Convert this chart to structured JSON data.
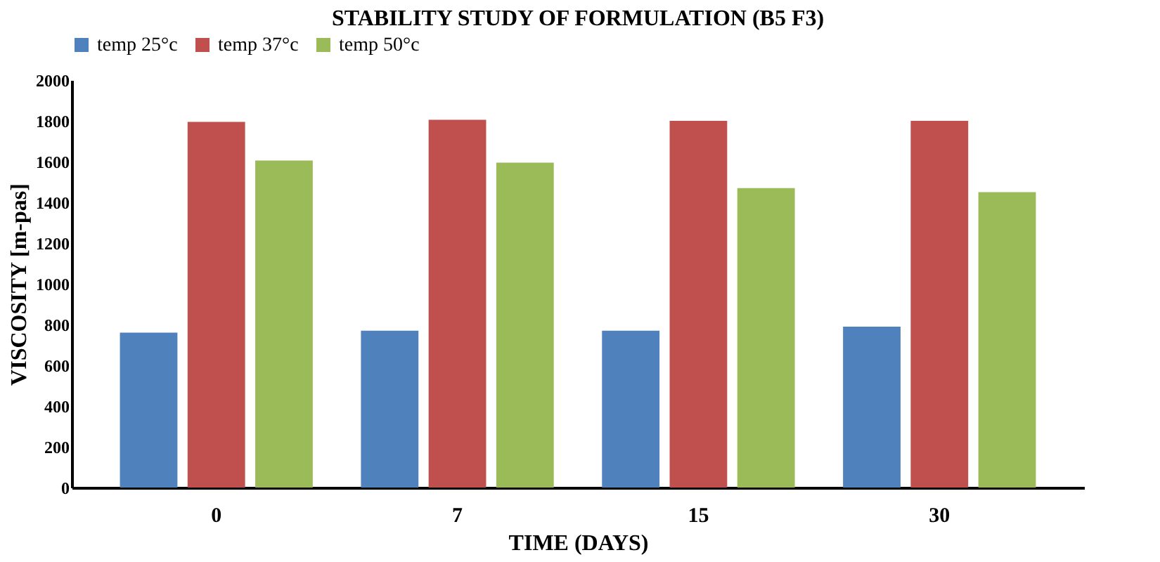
{
  "chart_data": {
    "type": "bar",
    "title": "STABILITY STUDY OF FORMULATION (B5 F3)",
    "xlabel": "TIME (DAYS)",
    "ylabel": "VISCOSITY [m-pas]",
    "categories": [
      "0",
      "7",
      "15",
      "30"
    ],
    "series": [
      {
        "name": "temp 25°c",
        "color": "#4f81bd",
        "values": [
          760,
          770,
          770,
          790
        ]
      },
      {
        "name": "temp 37°c",
        "color": "#c0504d",
        "values": [
          1795,
          1805,
          1800,
          1800
        ]
      },
      {
        "name": "temp 50°c",
        "color": "#9bbb59",
        "values": [
          1605,
          1595,
          1470,
          1450
        ]
      }
    ],
    "ylim": [
      0,
      2000
    ],
    "yticks": [
      0,
      200,
      400,
      600,
      800,
      1000,
      1200,
      1400,
      1600,
      1800,
      2000
    ],
    "grid": false,
    "legend": "top"
  }
}
